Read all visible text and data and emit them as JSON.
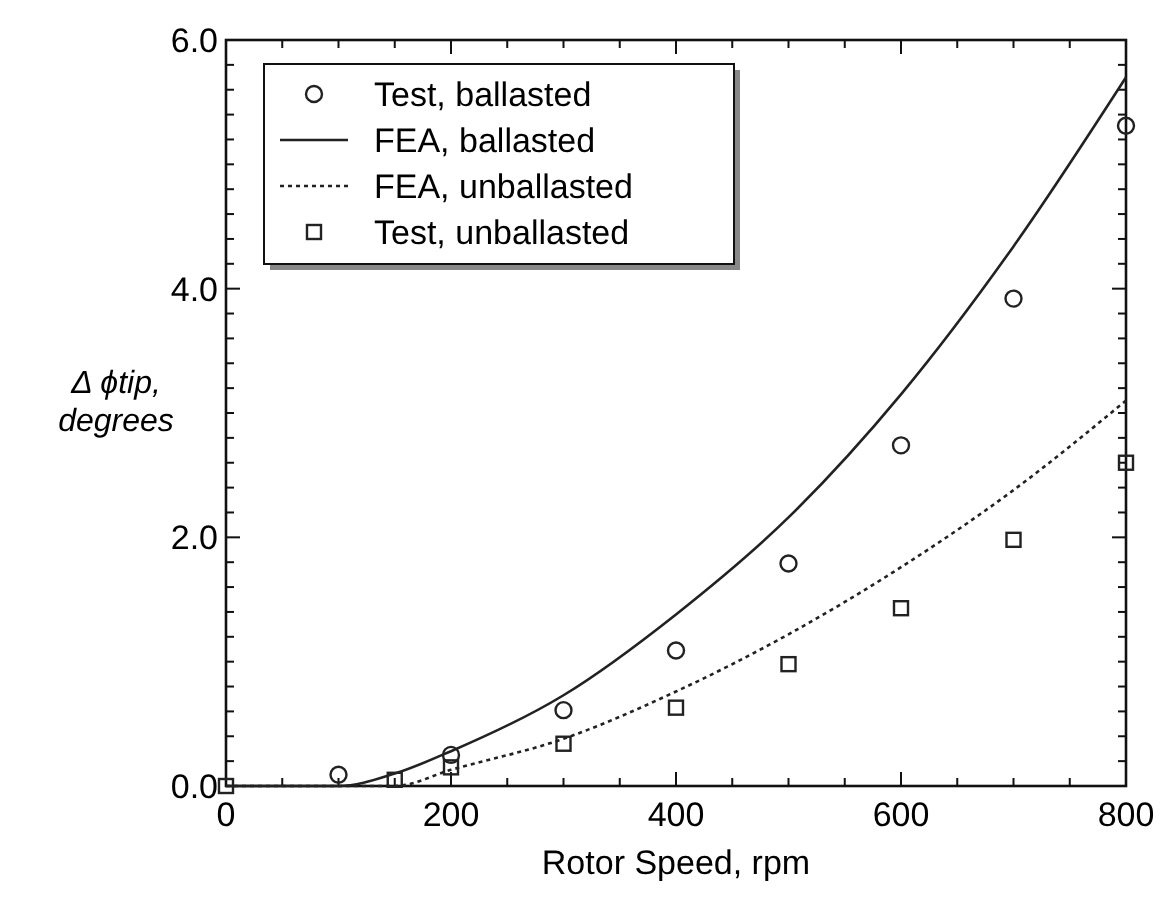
{
  "chart_data": {
    "type": "scatter",
    "xlabel": "Rotor Speed, rpm",
    "ylabel": "Δ ϕtip, degrees",
    "xlim": [
      0,
      800
    ],
    "ylim": [
      0,
      6
    ],
    "xticks": [
      0,
      {
        "value": 50,
        "label": null
      },
      {
        "value": 100,
        "label": null
      },
      {
        "value": 150,
        "label": null
      },
      200,
      {
        "value": 250,
        "label": null
      },
      {
        "value": 300,
        "label": null
      },
      {
        "value": 350,
        "label": null
      },
      400,
      {
        "value": 450,
        "label": null
      },
      {
        "value": 500,
        "label": null
      },
      {
        "value": 550,
        "label": null
      },
      600,
      {
        "value": 650,
        "label": null
      },
      {
        "value": 700,
        "label": null
      },
      {
        "value": 750,
        "label": null
      },
      800
    ],
    "yticks": [
      "0.0",
      {
        "value": 0.2,
        "label": null
      },
      {
        "value": 0.4,
        "label": null
      },
      {
        "value": 0.6,
        "label": null
      },
      {
        "value": 0.8,
        "label": null
      },
      {
        "value": 1,
        "label": null
      },
      {
        "value": 1.2,
        "label": null
      },
      {
        "value": 1.4,
        "label": null
      },
      {
        "value": 1.6,
        "label": null
      },
      {
        "value": 1.8,
        "label": null
      },
      {
        "value": 2,
        "label": "2.0"
      },
      {
        "value": 2.2,
        "label": null
      },
      {
        "value": 2.4,
        "label": null
      },
      {
        "value": 2.6,
        "label": null
      },
      {
        "value": 2.8,
        "label": null
      },
      {
        "value": 3,
        "label": null
      },
      {
        "value": 3.2,
        "label": null
      },
      {
        "value": 3.4,
        "label": null
      },
      {
        "value": 3.6,
        "label": null
      },
      {
        "value": 3.8,
        "label": null
      },
      {
        "value": 4,
        "label": "4.0"
      },
      {
        "value": 4.2,
        "label": null
      },
      {
        "value": 4.4,
        "label": null
      },
      {
        "value": 4.6,
        "label": null
      },
      {
        "value": 4.8,
        "label": null
      },
      {
        "value": 5,
        "label": null
      },
      {
        "value": 5.2,
        "label": null
      },
      {
        "value": 5.4,
        "label": null
      },
      {
        "value": 5.6,
        "label": null
      },
      {
        "value": 5.8,
        "label": null
      },
      {
        "value": 6,
        "label": "6.0"
      }
    ],
    "legend": "top left",
    "grid": false,
    "series": [
      {
        "name": "Test, ballasted",
        "marker": "circle",
        "color": "#222222",
        "x": [
          100,
          200,
          300,
          400,
          500,
          600,
          700,
          800
        ],
        "values": [
          0.09,
          0.25,
          0.61,
          1.09,
          1.79,
          2.74,
          3.92,
          5.31
        ]
      },
      {
        "name": "FEA, ballasted",
        "type": "line",
        "marker": "none",
        "line_style": "solid",
        "color": "#222222",
        "x": [
          0,
          100,
          150,
          200,
          300,
          400,
          500,
          600,
          700,
          800
        ],
        "values": [
          0,
          0,
          0.1,
          0.28,
          0.73,
          1.38,
          2.16,
          3.15,
          4.34,
          5.7
        ]
      },
      {
        "name": "FEA, unballasted",
        "type": "line",
        "marker": "none",
        "line_style": "dotted",
        "color": "#222222",
        "x": [
          0,
          150,
          200,
          300,
          400,
          500,
          600,
          700,
          800
        ],
        "values": [
          0,
          0,
          0.13,
          0.38,
          0.76,
          1.22,
          1.76,
          2.38,
          3.1
        ]
      },
      {
        "name": "Test, unballasted",
        "marker": "square",
        "color": "#222222",
        "x": [
          0,
          150,
          200,
          300,
          400,
          500,
          600,
          700,
          800
        ],
        "values": [
          0,
          0.05,
          0.15,
          0.34,
          0.63,
          0.98,
          1.43,
          1.98,
          2.6
        ]
      }
    ]
  }
}
